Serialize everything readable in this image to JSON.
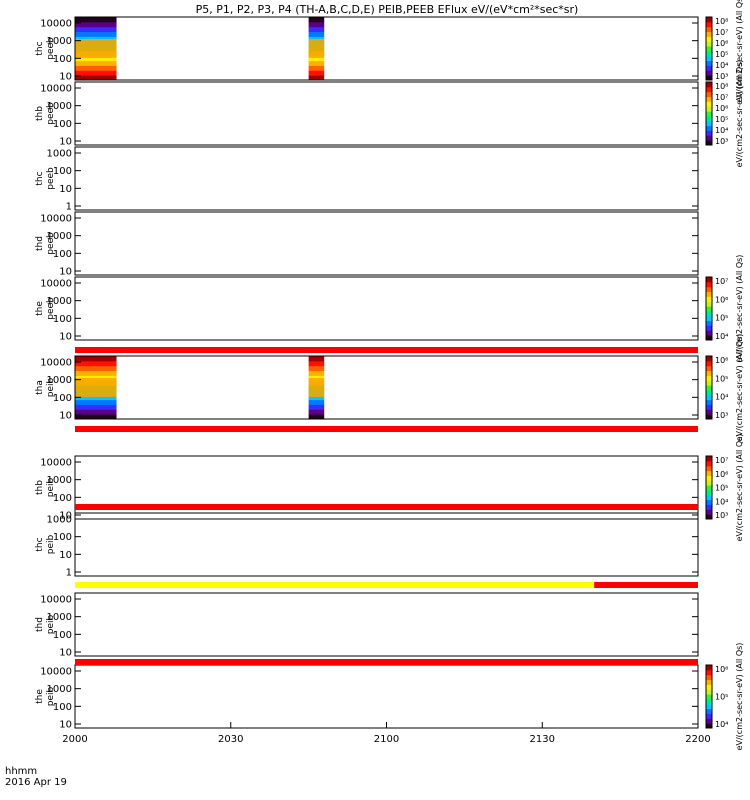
{
  "chart_data": {
    "type": "heatmap",
    "title": "P5, P1, P2, P3, P4 (TH-A,B,C,D,E) PEIB,PEEB EFlux eV/(eV*cm²*sec*sr)",
    "x_ticks": [
      "2000",
      "2030",
      "2100",
      "2130",
      "2200"
    ],
    "x_label_line1": "hhmm",
    "x_label_line2": "2016 Apr 19",
    "panels": [
      {
        "probe": "thc",
        "product": "peeb",
        "y_ticks": [
          "10",
          "100",
          "1000",
          "10000"
        ],
        "flag_bar": null,
        "data_blocks": [
          {
            "start": "2000",
            "end": "2008"
          },
          {
            "start": "2045",
            "end": "2048"
          }
        ],
        "colorbar": {
          "ticks": [
            "10³",
            "10⁴",
            "10⁵",
            "10⁶",
            "10⁷",
            "10⁸"
          ],
          "label": "eV/(cm2-sec-sr-eV) (All Qs)"
        }
      },
      {
        "probe": "thb",
        "product": "peeb",
        "y_ticks": [
          "10",
          "100",
          "1000",
          "10000"
        ],
        "flag_bar": null,
        "data_blocks": [],
        "colorbar": {
          "ticks": [
            "10³",
            "10⁴",
            "10⁵",
            "10⁶",
            "10⁷",
            "10⁸"
          ],
          "label": "eV/(cm2-sec-sr-eV) (All Qs)"
        }
      },
      {
        "probe": "thc",
        "product": "peeb",
        "y_ticks": [
          "1",
          "10",
          "100",
          "1000"
        ],
        "flag_bar": null,
        "data_blocks": [],
        "colorbar": null
      },
      {
        "probe": "thd",
        "product": "peeb",
        "y_ticks": [
          "10",
          "100",
          "1000",
          "10000"
        ],
        "flag_bar": null,
        "data_blocks": [],
        "colorbar": null
      },
      {
        "probe": "the",
        "product": "peeb",
        "y_ticks": [
          "10",
          "100",
          "1000",
          "10000"
        ],
        "flag_bar": null,
        "data_blocks": [],
        "colorbar": {
          "ticks": [
            "10⁴",
            "10⁵",
            "10⁶",
            "10⁷"
          ],
          "label": "eV/(cm2-sec-sr-eV) (All Qs)"
        }
      },
      {
        "probe": "tha",
        "product": "peib",
        "y_ticks": [
          "10",
          "100",
          "1000",
          "10000"
        ],
        "flag_bar": [
          {
            "from": "2000",
            "to": "2200",
            "color": "#ff0000"
          }
        ],
        "data_blocks": [
          {
            "start": "2000",
            "end": "2008"
          },
          {
            "start": "2045",
            "end": "2048"
          }
        ],
        "colorbar": {
          "ticks": [
            "10³",
            "10⁴",
            "10⁵",
            "10⁶"
          ],
          "label": "eV/(cm2-sec-sr-eV) (All Qs)"
        }
      },
      {
        "probe": "thb",
        "product": "peib",
        "y_ticks": [
          "10",
          "100",
          "1000",
          "10000"
        ],
        "flag_bar": [
          {
            "from": "2000",
            "to": "2200",
            "color": "#ff0000"
          }
        ],
        "data_blocks": [],
        "colorbar": {
          "ticks": [
            "10³",
            "10⁴",
            "10⁵",
            "10⁶",
            "10⁷"
          ],
          "label": "eV/(cm2-sec-sr-eV) (All Qs)"
        }
      },
      {
        "probe": "thc",
        "product": "peib",
        "y_ticks": [
          "1",
          "10",
          "100",
          "1000"
        ],
        "flag_bar": [
          {
            "from": "2000",
            "to": "2200",
            "color": "#ff0000"
          }
        ],
        "data_blocks": [],
        "colorbar": null
      },
      {
        "probe": "thd",
        "product": "peib",
        "y_ticks": [
          "10",
          "100",
          "1000",
          "10000"
        ],
        "flag_bar": [
          {
            "from": "2000",
            "to": "2140",
            "color": "#ffff00"
          },
          {
            "from": "2140",
            "to": "2200",
            "color": "#ff0000"
          }
        ],
        "data_blocks": [],
        "colorbar": null
      },
      {
        "probe": "the",
        "product": "peib",
        "y_ticks": [
          "10",
          "100",
          "1000",
          "10000"
        ],
        "flag_bar": [
          {
            "from": "2000",
            "to": "2200",
            "color": "#ff0000"
          }
        ],
        "data_blocks": [],
        "colorbar": {
          "ticks": [
            "10⁴",
            "10⁵",
            "10⁶"
          ],
          "label": "eV/(cm2-sec-sr-eV) (All Qs)"
        }
      }
    ],
    "colors": {
      "rainbow": [
        "#20001a",
        "#5a0086",
        "#3c2aff",
        "#0078ff",
        "#00c8ff",
        "#00e890",
        "#3cf030",
        "#c8f020",
        "#ffee00",
        "#ffb000",
        "#ff6000",
        "#ff1000",
        "#a00000"
      ]
    }
  }
}
